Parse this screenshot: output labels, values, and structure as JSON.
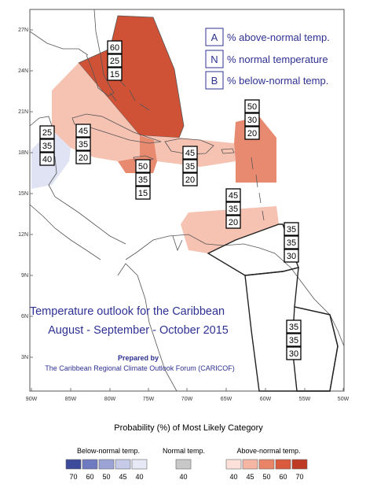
{
  "title": {
    "line1": "Temperature outlook for the Caribbean",
    "line2": "August - September - October 2015"
  },
  "prepared": {
    "line1": "Prepared by",
    "line2": "The Caribbean Regional Climate Outlook Forum (CARICOF)"
  },
  "legend": [
    {
      "letter": "A",
      "text": "% above-normal temp."
    },
    {
      "letter": "N",
      "text": "% normal temperature"
    },
    {
      "letter": "B",
      "text": "% below-normal temp."
    }
  ],
  "axes": {
    "lat_labels": [
      "27N",
      "24N",
      "21N",
      "18N",
      "15N",
      "12N",
      "9N",
      "6N",
      "3N"
    ],
    "lon_labels": [
      "90W",
      "85W",
      "80W",
      "75W",
      "70W",
      "65W",
      "60W",
      "55W",
      "50W"
    ]
  },
  "regions": [
    {
      "id": "bahamas-north",
      "above": 60,
      "normal": 25,
      "below": 15,
      "category": "above",
      "level": 60
    },
    {
      "id": "cuba",
      "above": 45,
      "normal": 35,
      "below": 20,
      "category": "above",
      "level": 45
    },
    {
      "id": "belize-yucatan",
      "above": 25,
      "normal": 35,
      "below": 40,
      "category": "below",
      "level": 40
    },
    {
      "id": "jamaica",
      "above": 50,
      "normal": 35,
      "below": 15,
      "category": "above",
      "level": 50
    },
    {
      "id": "hispaniola",
      "above": 45,
      "normal": 35,
      "below": 20,
      "category": "above",
      "level": 45
    },
    {
      "id": "leeward-islands",
      "above": 50,
      "normal": 30,
      "below": 20,
      "category": "above",
      "level": 50
    },
    {
      "id": "abc-islands",
      "above": 45,
      "normal": 35,
      "below": 20,
      "category": "above",
      "level": 45
    },
    {
      "id": "trinidad-tobago",
      "above": 35,
      "normal": 35,
      "below": 30,
      "category": "none",
      "level": 0
    },
    {
      "id": "guianas",
      "above": 35,
      "normal": 35,
      "below": 30,
      "category": "none",
      "level": 0
    }
  ],
  "probability_scale": {
    "title": "Probability (%) of Most Likely Category",
    "below": {
      "label": "Below-normal temp.",
      "values": [
        "70",
        "60",
        "50",
        "45",
        "40"
      ],
      "colors": [
        "#3b4a9a",
        "#6f7bc0",
        "#9aa3d4",
        "#c6cbe8",
        "#e7e9f6"
      ]
    },
    "normal": {
      "label": "Normal temp.",
      "values": [
        "40"
      ],
      "colors": [
        "#c8c8c8"
      ]
    },
    "above": {
      "label": "Above-normal temp.",
      "values": [
        "40",
        "45",
        "50",
        "60",
        "70"
      ],
      "colors": [
        "#fbe1d9",
        "#f5b6a3",
        "#ea8466",
        "#d95a3d",
        "#bf3a22"
      ]
    }
  },
  "colors": {
    "above60": "#cf5236",
    "above50": "#e88a70",
    "above45": "#f6c2b2",
    "below40": "#dfe3f3",
    "title_blue": "#2e3192"
  }
}
